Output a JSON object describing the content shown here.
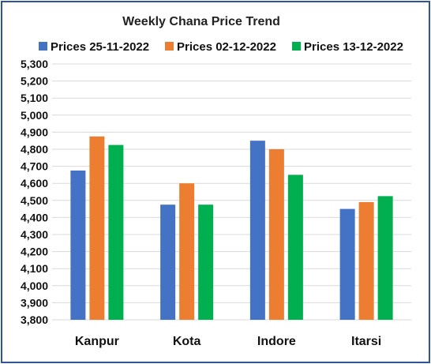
{
  "chart_data": {
    "type": "bar",
    "title": "Weekly Chana Price Trend",
    "categories": [
      "Kanpur",
      "Kota",
      "Indore",
      "Itarsi"
    ],
    "series": [
      {
        "name": "Prices 25-11-2022",
        "color": "#4472c4",
        "values": [
          4675,
          4475,
          4850,
          4450
        ]
      },
      {
        "name": "Prices 02-12-2022",
        "color": "#ed7d31",
        "values": [
          4875,
          4600,
          4800,
          4490
        ]
      },
      {
        "name": "Prices 13-12-2022",
        "color": "#00b050",
        "values": [
          4825,
          4475,
          4650,
          4525
        ]
      }
    ],
    "ylim": [
      3800,
      5300
    ],
    "ytick_step": 100,
    "ytick_labels": [
      "3,800",
      "3,900",
      "4,000",
      "4,100",
      "4,200",
      "4,300",
      "4,400",
      "4,500",
      "4,600",
      "4,700",
      "4,800",
      "4,900",
      "5,000",
      "5,100",
      "5,200",
      "5,300"
    ],
    "grid": true,
    "legend_position": "top"
  }
}
